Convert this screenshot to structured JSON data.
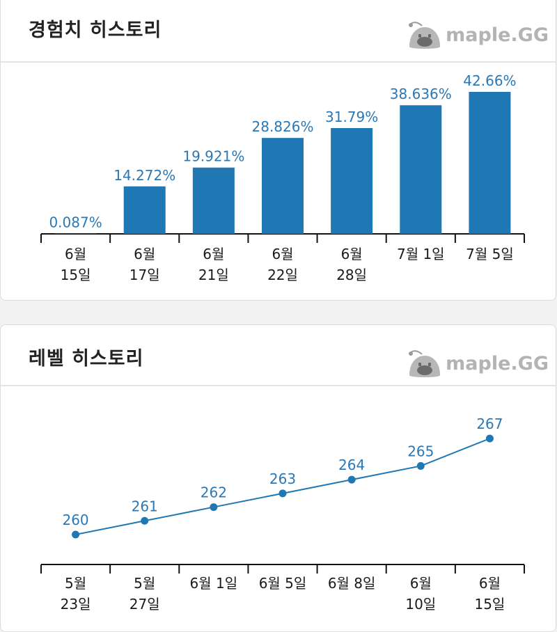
{
  "exp_card": {
    "title": "경험치 히스토리",
    "logo_icon": "slime-mascot-icon",
    "logo_text": "maple.GG"
  },
  "level_card": {
    "title": "레벨 히스토리",
    "logo_icon": "slime-mascot-icon",
    "logo_text": "maple.GG"
  },
  "colors": {
    "series": "#1f77b4",
    "label": "#2a78b6",
    "axis": "#111111"
  },
  "chart_data": [
    {
      "type": "bar",
      "title": "경험치 히스토리",
      "categories": [
        [
          "6월",
          "15일"
        ],
        [
          "6월",
          "17일"
        ],
        [
          "6월",
          "21일"
        ],
        [
          "6월",
          "22일"
        ],
        [
          "6월",
          "28일"
        ],
        [
          "7월 1일"
        ],
        [
          "7월 5일"
        ]
      ],
      "values": [
        0.087,
        14.272,
        19.921,
        28.826,
        31.79,
        38.636,
        42.66
      ],
      "data_labels": [
        "0.087%",
        "14.272%",
        "19.921%",
        "28.826%",
        "31.79%",
        "38.636%",
        "42.66%"
      ],
      "ylim": [
        0,
        42.66
      ],
      "grid": false,
      "legend": "none"
    },
    {
      "type": "line",
      "title": "레벨 히스토리",
      "categories": [
        [
          "5월",
          "23일"
        ],
        [
          "5월",
          "27일"
        ],
        [
          "6월 1일"
        ],
        [
          "6월 5일"
        ],
        [
          "6월 8일"
        ],
        [
          "6월",
          "10일"
        ],
        [
          "6월",
          "15일"
        ]
      ],
      "values": [
        260,
        261,
        262,
        263,
        264,
        265,
        267
      ],
      "data_labels": [
        "260",
        "261",
        "262",
        "263",
        "264",
        "265",
        "267"
      ],
      "ylim": [
        260,
        267
      ],
      "grid": false,
      "legend": "none"
    }
  ]
}
